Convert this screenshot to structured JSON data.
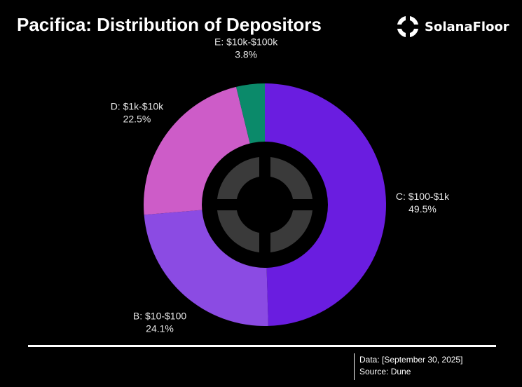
{
  "header": {
    "title": "Pacifica: Distribution of Depositors",
    "brand": "SolanaFloor",
    "brand_icon": "solanafloor-logo-icon"
  },
  "footer": {
    "data_line": "Data: [September 30, 2025]",
    "source_line": "Source: Dune"
  },
  "colors": {
    "background": "#000000",
    "hole": "#000000",
    "text": "#ffffff"
  },
  "chart_data": {
    "type": "pie",
    "title": "Pacifica: Distribution of Depositors",
    "donut": true,
    "start": "top",
    "direction": "clockwise",
    "slices": [
      {
        "category": "C: $100-$1k",
        "value": 49.5,
        "label": "49.5%",
        "color": "#6a1de0"
      },
      {
        "category": "B: $10-$100",
        "value": 24.1,
        "label": "24.1%",
        "color": "#8b4be3"
      },
      {
        "category": "D: $1k-$10k",
        "value": 22.5,
        "label": "22.5%",
        "color": "#cd5cc8"
      },
      {
        "category": "E: $10k-$100k",
        "value": 3.8,
        "label": "3.8%",
        "color": "#0b8a6a"
      }
    ]
  }
}
